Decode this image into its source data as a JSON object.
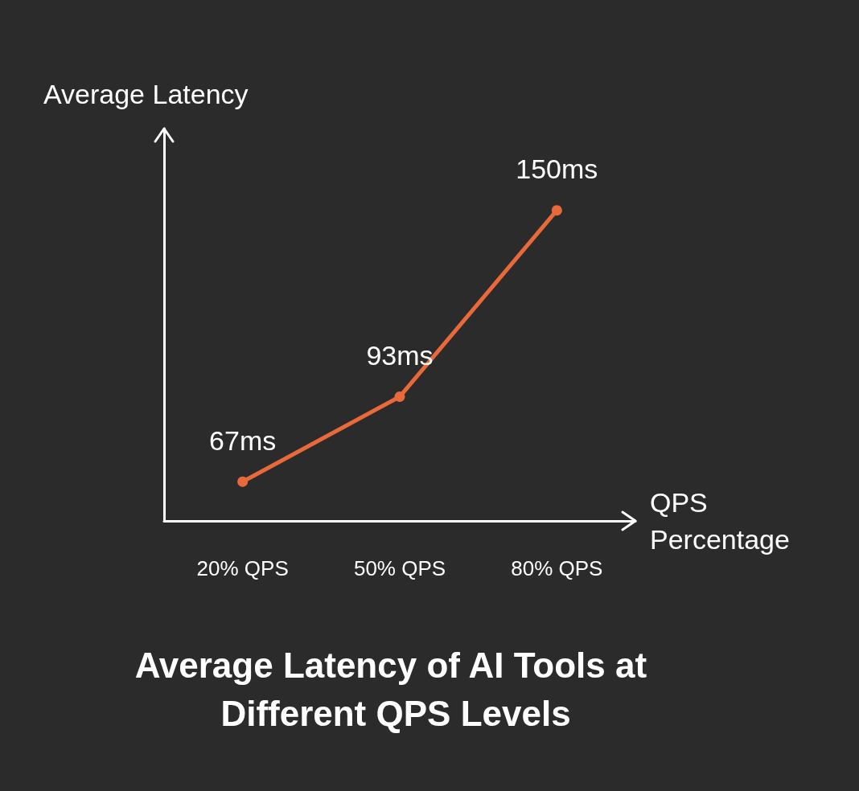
{
  "chart_data": {
    "type": "line",
    "title": "Average Latency of AI Tools at Different QPS Levels",
    "xlabel": "QPS\nPercentage",
    "ylabel": "Average Latency",
    "categories": [
      "20% QPS",
      "50% QPS",
      "80% QPS"
    ],
    "series": [
      {
        "color": "#e8693a",
        "values": [
          67,
          93,
          150
        ],
        "value_labels": [
          "67ms",
          "93ms",
          "150ms"
        ]
      }
    ],
    "ylim": [
      55,
      175
    ],
    "tick_labels": "x",
    "grid": false,
    "marker": "circle",
    "line_style": "solid"
  }
}
